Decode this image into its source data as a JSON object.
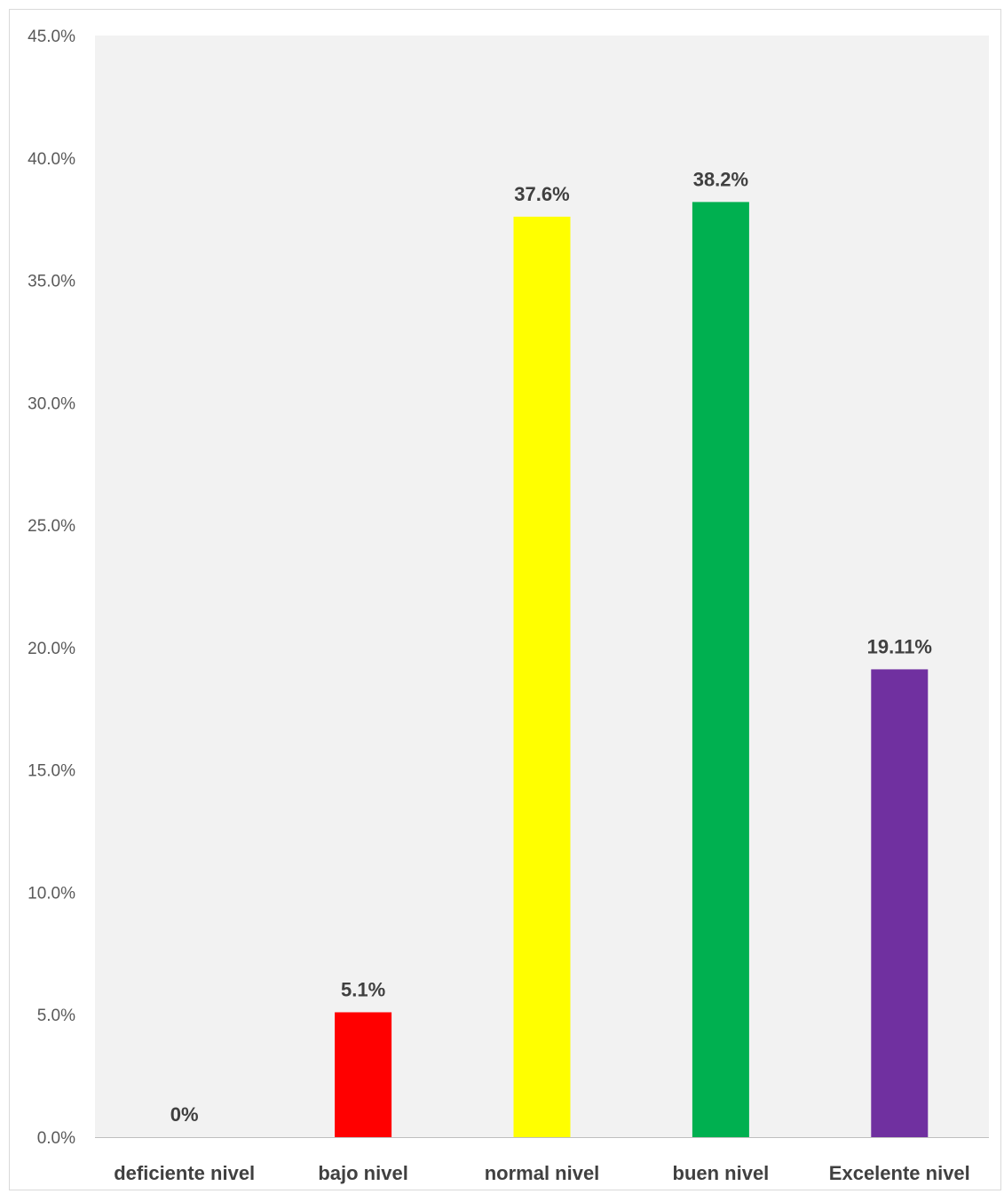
{
  "chart_data": {
    "type": "bar",
    "title": "",
    "xlabel": "",
    "ylabel": "",
    "categories": [
      "deficiente nivel",
      "bajo nivel",
      "normal nivel",
      "buen nivel",
      "Excelente nivel"
    ],
    "values": [
      0,
      5.1,
      37.6,
      38.2,
      19.11
    ],
    "data_labels": [
      "0%",
      "5.1%",
      "37.6%",
      "38.2%",
      "19.11%"
    ],
    "colors": [
      "#4472c4",
      "#ff0000",
      "#ffff00",
      "#00b050",
      "#7030a0"
    ],
    "ylim": [
      0,
      45
    ],
    "yticks": [
      0,
      5,
      10,
      15,
      20,
      25,
      30,
      35,
      40,
      45
    ],
    "ytick_labels": [
      "0.0%",
      "5.0%",
      "10.0%",
      "15.0%",
      "20.0%",
      "25.0%",
      "30.0%",
      "35.0%",
      "40.0%",
      "45.0%"
    ],
    "grid": false,
    "legend": "none",
    "plot_background": "#f2f2f2"
  }
}
